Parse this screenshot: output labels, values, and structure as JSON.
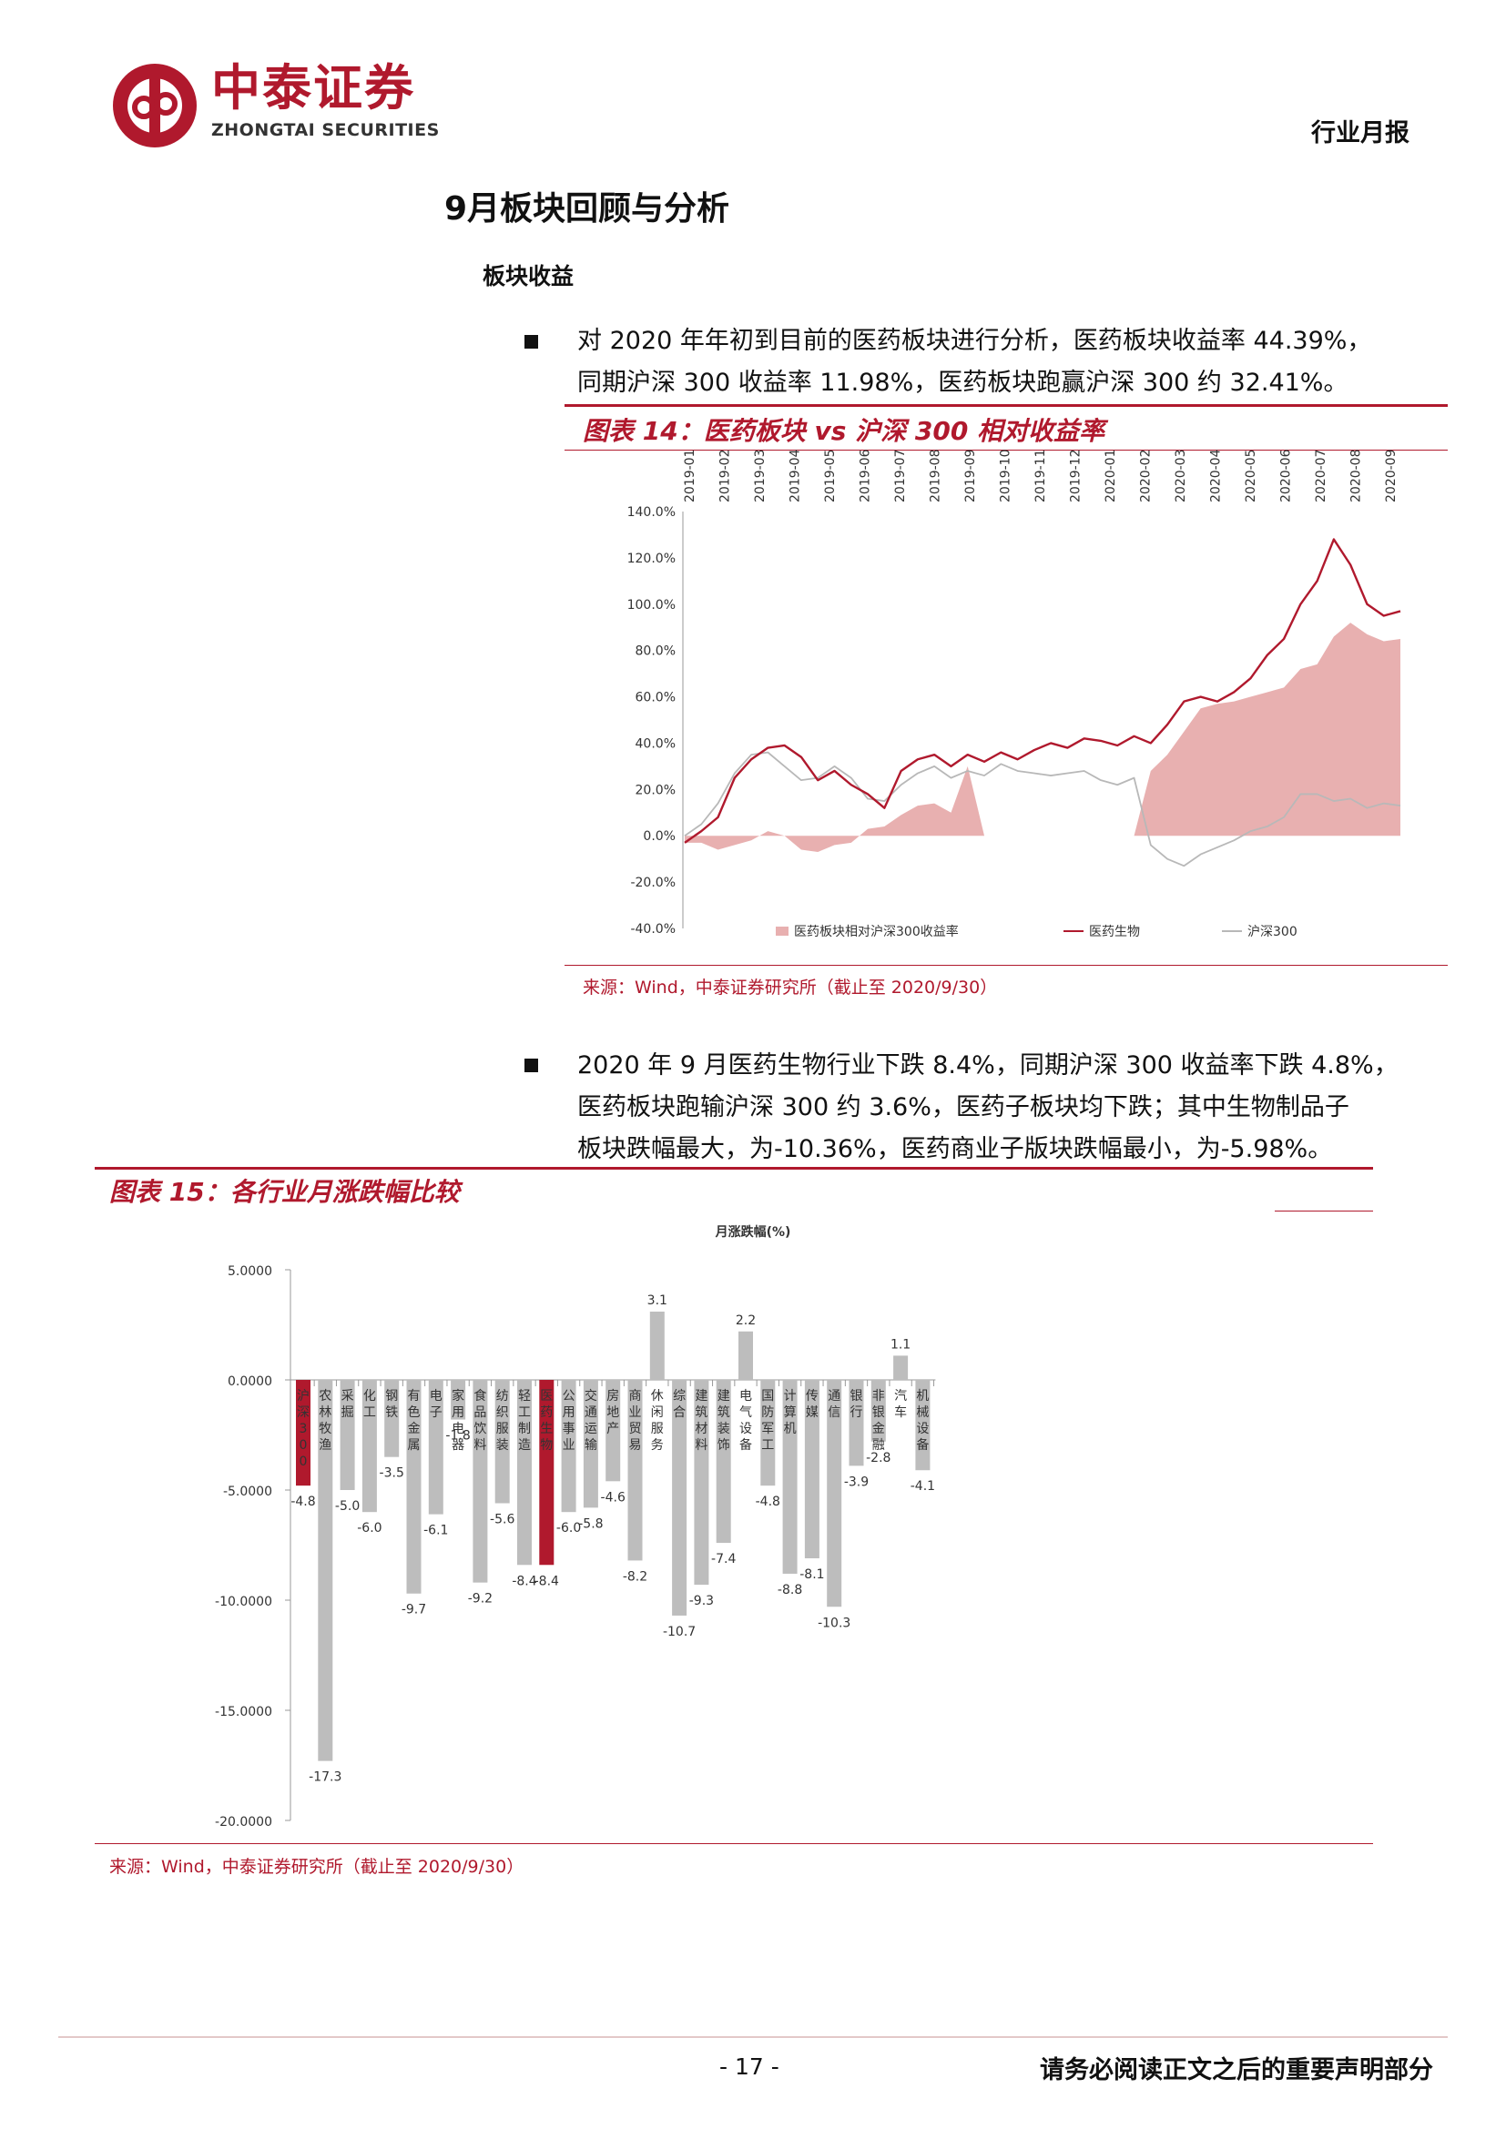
{
  "header": {
    "logo_cn": "中泰证券",
    "logo_en": "ZHONGTAI SECURITIES",
    "report_type": "行业月报"
  },
  "section": {
    "title": "9月板块回顾与分析",
    "subtitle": "板块收益"
  },
  "paragraph1": {
    "line1": "对 2020 年年初到目前的医药板块进行分析，医药板块收益率 44.39%，",
    "line2": "同期沪深 300 收益率 11.98%，医药板块跑赢沪深 300 约 32.41%。"
  },
  "paragraph2": {
    "line1": "2020 年 9 月医药生物行业下跌 8.4%，同期沪深 300 收益率下跌 4.8%，",
    "line2": "医药板块跑输沪深 300 约 3.6%，医药子板块均下跌；其中生物制品子",
    "line3": "板块跌幅最大，为-10.36%，医药商业子版块跌幅最小，为-5.98%。"
  },
  "figure14": {
    "title": "图表 14：医药板块 vs 沪深 300 相对收益率",
    "source": "来源：Wind，中泰证券研究所（截止至 2020/9/30）"
  },
  "figure15": {
    "title": "图表 15：各行业月涨跌幅比较",
    "source": "来源：Wind，中泰证券研究所（截止至 2020/9/30）"
  },
  "footer": {
    "page": "- 17 -",
    "disclaimer": "请务必阅读正文之后的重要声明部分"
  },
  "chart_data": [
    {
      "type": "line",
      "x_labels": [
        "2019-01",
        "2019-02",
        "2019-03",
        "2019-04",
        "2019-05",
        "2019-06",
        "2019-07",
        "2019-08",
        "2019-09",
        "2019-10",
        "2019-11",
        "2019-12",
        "2020-01",
        "2020-02",
        "2020-03",
        "2020-04",
        "2020-05",
        "2020-06",
        "2020-07",
        "2020-08",
        "2020-09"
      ],
      "y_ticks": [
        "140.0%",
        "120.0%",
        "100.0%",
        "80.0%",
        "60.0%",
        "40.0%",
        "20.0%",
        "0.0%",
        "-20.0%",
        "-40.0%"
      ],
      "ylim": [
        -40,
        140
      ],
      "legend_position": "bottom",
      "colors": {
        "relative": "#e8b0b0",
        "pharma": "#b0192d",
        "hs300": "#b8b8b8"
      },
      "series": [
        {
          "name": "医药板块相对沪深300收益率",
          "kind": "area",
          "values": [
            -3,
            -3,
            -6,
            -4,
            -2,
            2,
            0,
            -6,
            -7,
            -4,
            -3,
            3,
            4,
            9,
            13,
            14,
            10,
            30,
            0,
            0,
            0,
            0,
            0,
            0,
            0,
            0,
            0,
            0,
            28,
            35,
            45,
            55,
            57,
            58,
            60,
            62,
            64,
            72,
            74,
            86,
            92,
            87,
            84,
            85
          ]
        },
        {
          "name": "医药生物",
          "kind": "line",
          "values": [
            -3,
            2,
            8,
            25,
            33,
            38,
            39,
            34,
            24,
            28,
            22,
            18,
            12,
            28,
            33,
            35,
            30,
            35,
            32,
            36,
            33,
            37,
            40,
            38,
            42,
            41,
            39,
            43,
            40,
            48,
            58,
            60,
            58,
            62,
            68,
            78,
            85,
            100,
            110,
            128,
            117,
            100,
            95,
            97
          ]
        },
        {
          "name": "沪深300",
          "kind": "line",
          "values": [
            0,
            5,
            14,
            27,
            35,
            36,
            30,
            24,
            25,
            30,
            25,
            16,
            15,
            22,
            27,
            30,
            25,
            28,
            26,
            31,
            28,
            27,
            26,
            27,
            28,
            24,
            22,
            25,
            -4,
            -10,
            -13,
            -8,
            -5,
            -2,
            2,
            4,
            8,
            18,
            18,
            15,
            16,
            12,
            14,
            13
          ]
        }
      ]
    },
    {
      "type": "bar",
      "title": "月涨跌幅(%)",
      "ylim": [
        -20,
        5
      ],
      "y_ticks": [
        "5.0000",
        "0.0000",
        "-5.0000",
        "-10.0000",
        "-15.0000",
        "-20.0000"
      ],
      "colors": {
        "default": "#bdbdbd",
        "highlight": "#b0192d",
        "label": "#c8102e"
      },
      "categories": [
        "沪深300",
        "农林牧渔",
        "采掘",
        "化工",
        "钢铁",
        "有色金属",
        "电子",
        "家用电器",
        "食品饮料",
        "纺织服装",
        "轻工制造",
        "医药生物",
        "公用事业",
        "交通运输",
        "房地产",
        "商业贸易",
        "休闲服务",
        "综合",
        "建筑材料",
        "建筑装饰",
        "电气设备",
        "国防军工",
        "计算机",
        "传媒",
        "通信",
        "银行",
        "非银金融",
        "汽车",
        "机械设备"
      ],
      "values": [
        -4.8,
        -17.3,
        -5.0,
        -6.0,
        -3.5,
        -9.7,
        -6.1,
        -1.8,
        -9.2,
        -5.6,
        -8.4,
        -8.4,
        -6.0,
        -5.8,
        -4.6,
        -8.2,
        3.1,
        -10.7,
        -9.3,
        -7.4,
        2.2,
        -4.8,
        -8.8,
        -8.1,
        -10.3,
        -3.9,
        -2.8,
        1.1,
        -4.1
      ],
      "highlight": [
        "沪深300",
        "医药生物"
      ]
    }
  ]
}
